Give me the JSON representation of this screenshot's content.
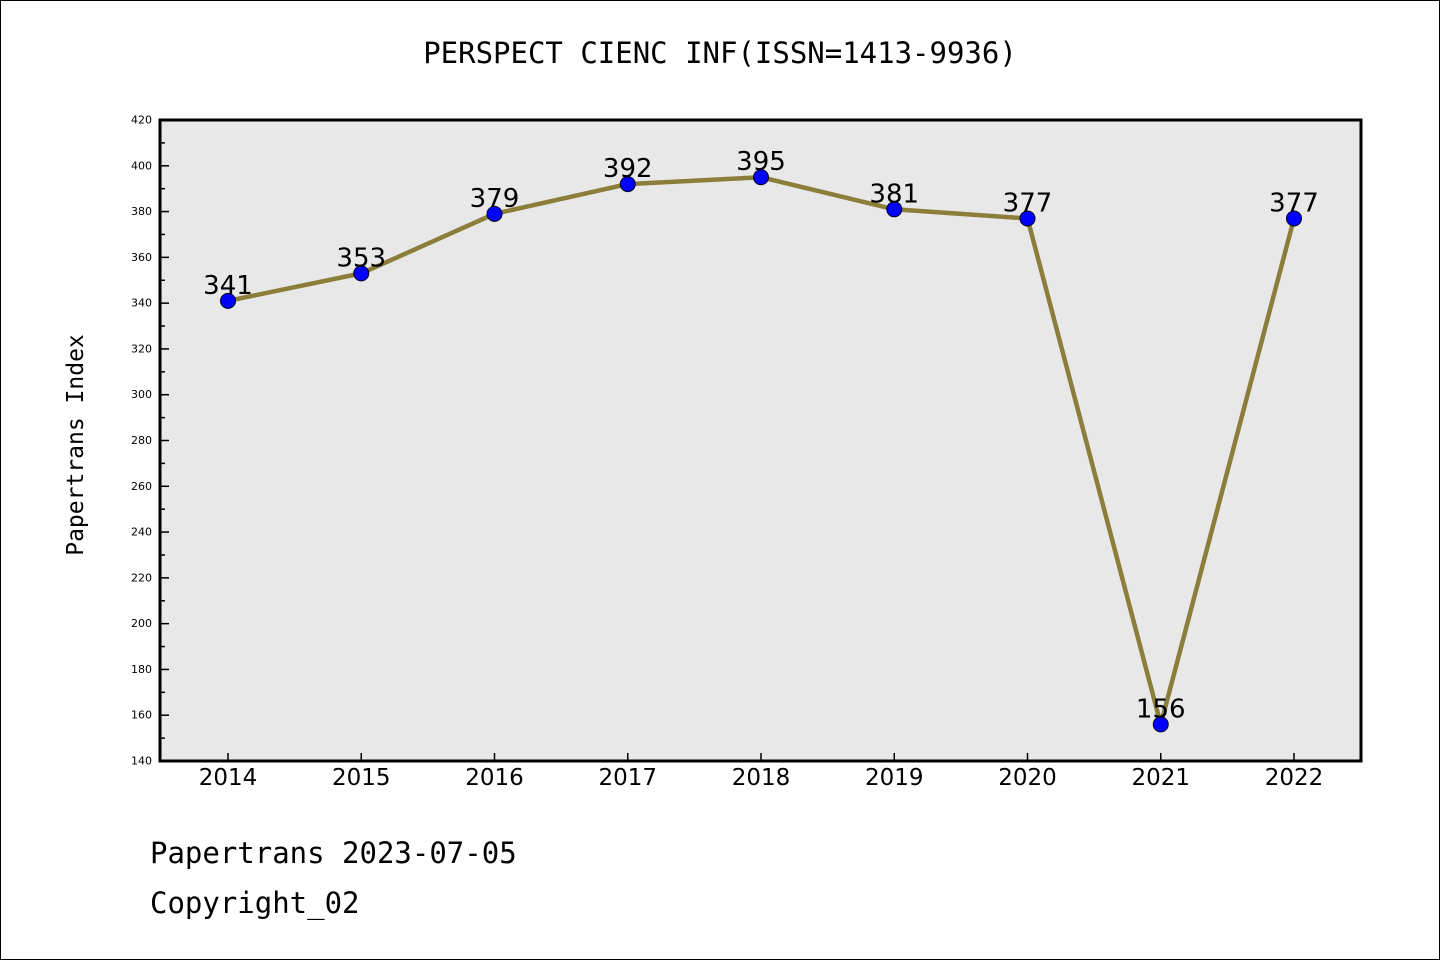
{
  "chart_data": {
    "type": "line",
    "title": "PERSPECT CIENC INF(ISSN=1413-9936)",
    "xlabel": "",
    "ylabel": "Papertrans Index",
    "categories": [
      "2014",
      "2015",
      "2016",
      "2017",
      "2018",
      "2019",
      "2020",
      "2021",
      "2022"
    ],
    "series": [
      {
        "values": [
          341,
          353,
          379,
          392,
          395,
          381,
          377,
          156,
          377
        ]
      }
    ],
    "data_labels": [
      "341",
      "353",
      "379",
      "392",
      "395",
      "381",
      "377",
      "156",
      "377"
    ],
    "ylim": [
      140,
      420
    ],
    "yticks": [
      "140",
      "160",
      "180",
      "200",
      "220",
      "240",
      "260",
      "280",
      "300",
      "320",
      "340",
      "360",
      "380",
      "400",
      "420"
    ],
    "grid": false,
    "legend": "none",
    "colors": {
      "line": "#8b7d3a",
      "marker": "#0000ff",
      "plot_background": "#e8e8e8"
    }
  },
  "footer": {
    "date_line": "Papertrans 2023-07-05",
    "copyright": "Copyright_02"
  }
}
